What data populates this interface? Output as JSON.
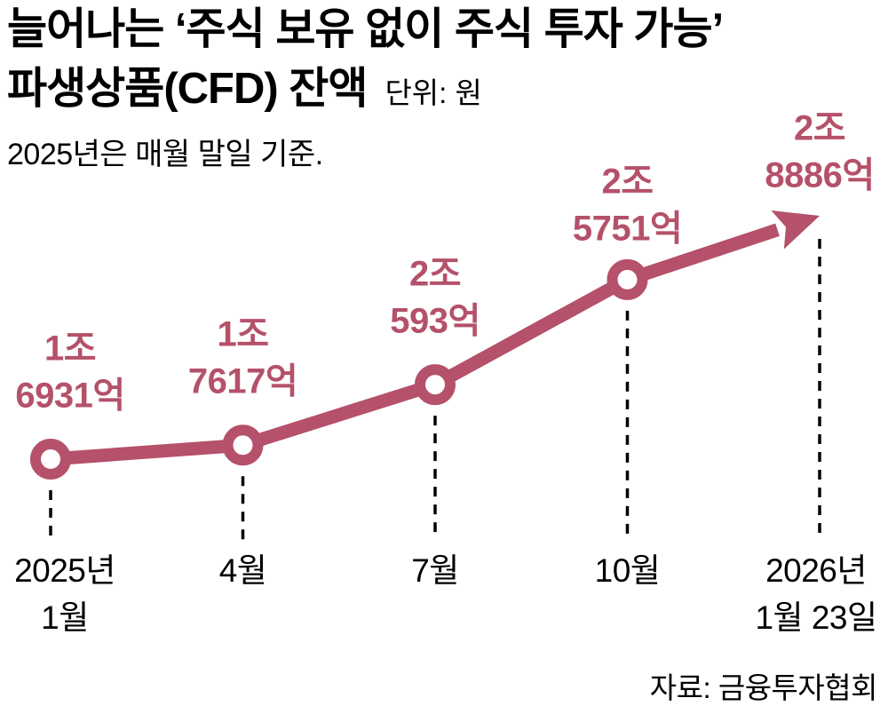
{
  "header": {
    "title_line1": "늘어나는 ‘주식 보유 없이 주식 투자 가능’",
    "title_line2": "파생상품(CFD) 잔액",
    "unit_label": "단위: 원",
    "subtitle": "2025년은 매월 말일 기준."
  },
  "chart_data": {
    "type": "line",
    "title": "파생상품(CFD) 잔액",
    "unit": "원",
    "note": "2025년은 매월 말일 기준.",
    "line_color": "#b5516a",
    "guide_line_color": "#000000",
    "marker_style": "donut",
    "last_point_style": "arrow",
    "grid": false,
    "ylim_eokwon": [
      16000,
      29500
    ],
    "categories": [
      "2025년 1월",
      "4월",
      "7월",
      "10월",
      "2026년 1월 23일"
    ],
    "values_eokwon": [
      16931,
      17617,
      20593,
      25751,
      28886
    ],
    "points": [
      {
        "x_label_line1": "2025년",
        "x_label_line2": "1월",
        "value_eokwon": 16931,
        "label_line1": "1조",
        "label_line2": "6931억"
      },
      {
        "x_label_line1": "4월",
        "x_label_line2": "",
        "value_eokwon": 17617,
        "label_line1": "1조",
        "label_line2": "7617억"
      },
      {
        "x_label_line1": "7월",
        "x_label_line2": "",
        "value_eokwon": 20593,
        "label_line1": "2조",
        "label_line2": "593억"
      },
      {
        "x_label_line1": "10월",
        "x_label_line2": "",
        "value_eokwon": 25751,
        "label_line1": "2조",
        "label_line2": "5751억"
      },
      {
        "x_label_line1": "2026년",
        "x_label_line2": "1월 23일",
        "value_eokwon": 28886,
        "label_line1": "2조",
        "label_line2": "8886억"
      }
    ]
  },
  "footer": {
    "source": "자료: 금융투자협회"
  }
}
